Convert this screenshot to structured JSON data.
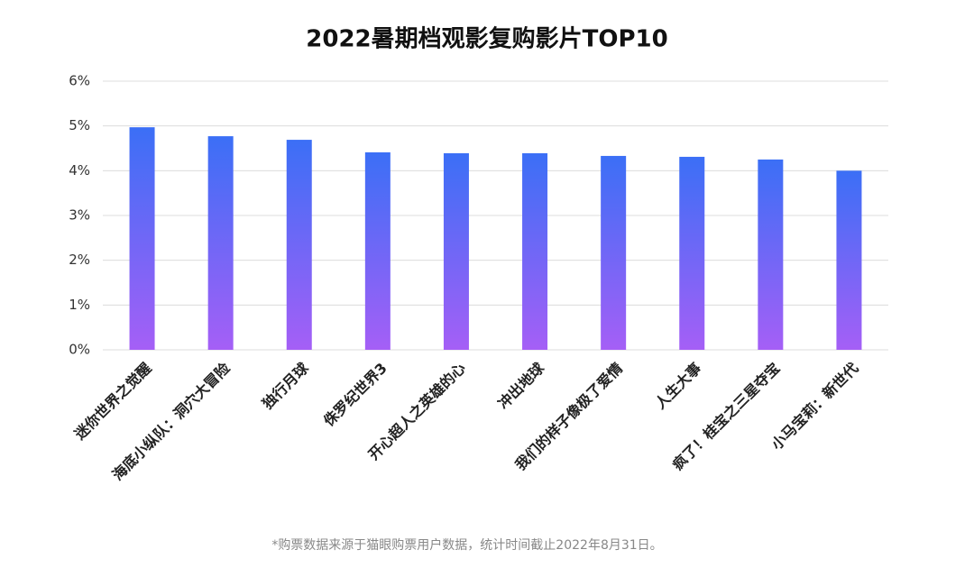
{
  "chart_data": {
    "type": "bar",
    "title": "2022暑期档观影复购影片TOP10",
    "categories": [
      "迷你世界之觉醒",
      "海底小纵队：洞穴大冒险",
      "独行月球",
      "侏罗纪世界3",
      "开心超人之英雄的心",
      "冲出地球",
      "我们的样子像极了爱情",
      "人生大事",
      "疯了！桂宝之三星夺宝",
      "小马宝莉：新世代"
    ],
    "values": [
      4.97,
      4.77,
      4.69,
      4.41,
      4.39,
      4.39,
      4.33,
      4.31,
      4.25,
      4.0
    ],
    "gradient": [
      "#3b6ff6",
      "#a55ff6"
    ],
    "ylim": [
      0,
      6
    ],
    "yticks": [
      {
        "value": 0,
        "label": "0%"
      },
      {
        "value": 1,
        "label": "1%"
      },
      {
        "value": 2,
        "label": "2%"
      },
      {
        "value": 3,
        "label": "3%"
      },
      {
        "value": 4,
        "label": "4%"
      },
      {
        "value": 5,
        "label": "5%"
      },
      {
        "value": 6,
        "label": "6%"
      }
    ],
    "grid": true,
    "footnote": "*购票数据来源于猫眼购票用户数据，统计时间截止2022年8月31日。"
  }
}
